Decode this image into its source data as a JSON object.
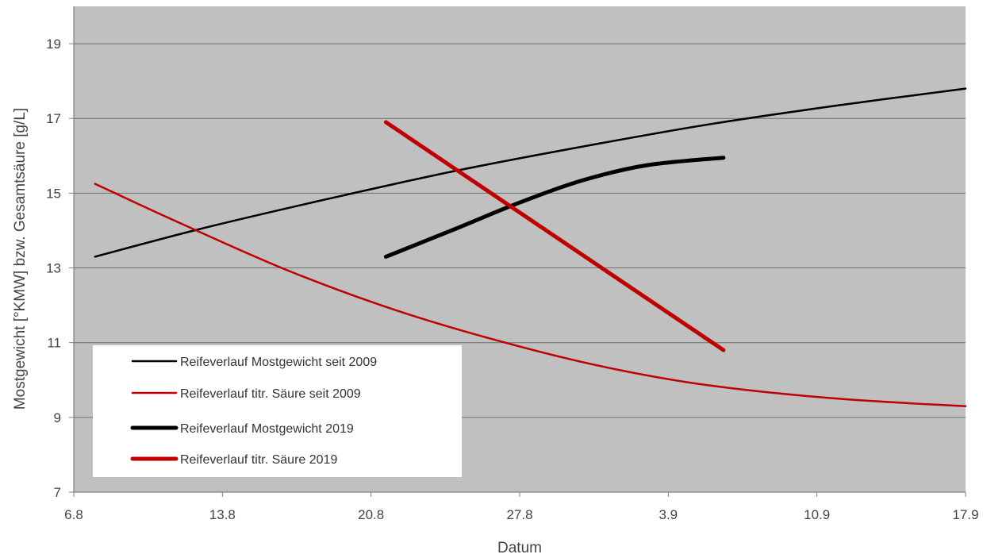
{
  "chart_data": {
    "type": "line",
    "title": "",
    "xlabel": "Datum",
    "ylabel": "Mostgewicht [°KMW] bzw. Gesamtsäure [g/L]",
    "x_ticks": [
      "6.8",
      "13.8",
      "20.8",
      "27.8",
      "3.9",
      "10.9",
      "17.9"
    ],
    "xlim_days": [
      0,
      42
    ],
    "ylim": [
      7,
      20
    ],
    "y_ticks": [
      7,
      9,
      11,
      13,
      15,
      17,
      19
    ],
    "grid": true,
    "plot_background": "#c0c0c0",
    "legend_position": "bottom-left",
    "series": [
      {
        "name": "Reifeverlauf Mostgewicht seit 2009",
        "color": "#000000",
        "style": "thin",
        "points": [
          [
            1,
            13.3
          ],
          [
            6,
            14.05
          ],
          [
            12,
            14.85
          ],
          [
            18,
            15.6
          ],
          [
            24,
            16.25
          ],
          [
            30,
            16.85
          ],
          [
            36,
            17.35
          ],
          [
            42,
            17.8
          ]
        ]
      },
      {
        "name": "Reifeverlauf titr. Säure seit 2009",
        "color": "#c00000",
        "style": "thin",
        "points": [
          [
            1,
            15.25
          ],
          [
            5,
            14.2
          ],
          [
            10,
            12.95
          ],
          [
            15,
            11.9
          ],
          [
            20,
            11.05
          ],
          [
            25,
            10.35
          ],
          [
            30,
            9.85
          ],
          [
            36,
            9.5
          ],
          [
            42,
            9.3
          ]
        ]
      },
      {
        "name": "Reifeverlauf Mostgewicht 2019",
        "color": "#000000",
        "style": "thick",
        "points": [
          [
            14.7,
            13.3
          ],
          [
            18,
            14.05
          ],
          [
            21,
            14.75
          ],
          [
            24,
            15.35
          ],
          [
            27,
            15.75
          ],
          [
            30.6,
            15.95
          ]
        ]
      },
      {
        "name": "Reifeverlauf titr. Säure 2019",
        "color": "#c00000",
        "style": "thick",
        "points": [
          [
            14.7,
            16.9
          ],
          [
            30.6,
            10.8
          ]
        ]
      }
    ]
  }
}
